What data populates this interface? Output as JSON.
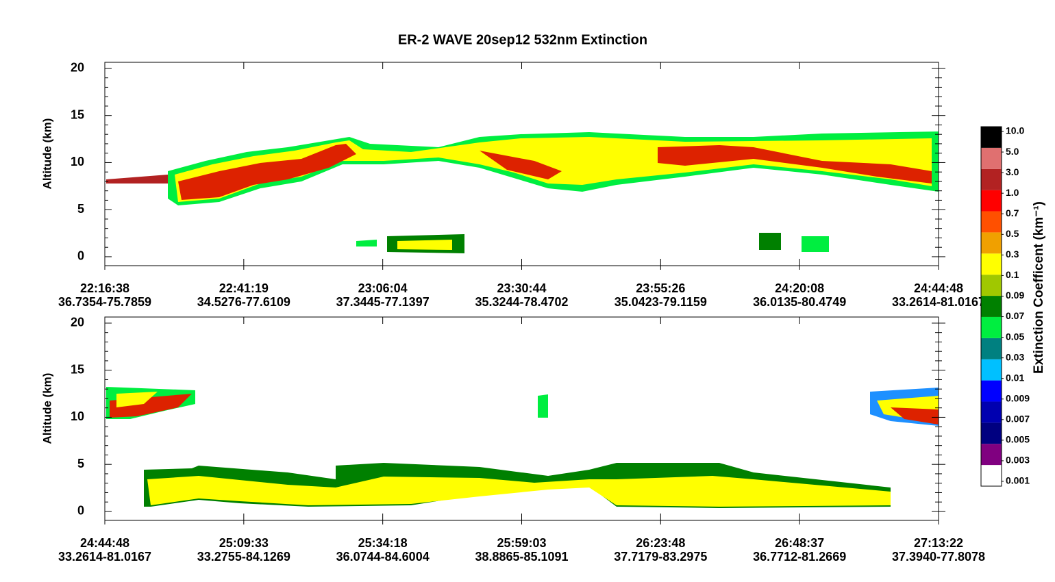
{
  "chart_data": [
    {
      "type": "curtain",
      "title": "ER-2  WAVE  20sep12  532nm Extinction",
      "ylabel": "Altitude (km)",
      "categories": [
        "22:16:38",
        "22:41:19",
        "23:06:04",
        "23:30:44",
        "23:55:26",
        "24:20:08",
        "24:44:48"
      ],
      "locations": [
        "36.7354-75.7859",
        "34.5276-77.6109",
        "37.3445-77.1397",
        "35.3244-78.4702",
        "35.0423-79.1159",
        "36.0135-80.4749",
        "33.2614-81.0167"
      ],
      "ylim": [
        -0.95,
        20.65
      ],
      "yticks": [
        0,
        5,
        10,
        15,
        20
      ]
    },
    {
      "type": "curtain",
      "ylabel": "Altitude (km)",
      "categories": [
        "24:44:48",
        "25:09:33",
        "25:34:18",
        "25:59:03",
        "26:23:48",
        "26:48:37",
        "27:13:22"
      ],
      "locations": [
        "33.2614-81.0167",
        "33.2755-84.1269",
        "36.0744-84.6004",
        "38.8865-85.1091",
        "37.7179-83.2975",
        "36.7712-81.2669",
        "37.3940-77.8078"
      ],
      "ylim": [
        -0.95,
        20.65
      ],
      "yticks": [
        0,
        5,
        10,
        15,
        20
      ]
    }
  ],
  "colorbar": {
    "label": "Extinction Coefficent (km⁻¹)",
    "ticks": [
      0.001,
      0.003,
      0.005,
      0.007,
      0.009,
      0.01,
      0.03,
      0.05,
      0.07,
      0.09,
      0.1,
      {
        "value": 0.3,
        "label": "0.3"
      },
      0.5,
      0.7,
      {
        "value": 1,
        "label": "1.0"
      },
      {
        "value": 3,
        "label": "3.0"
      },
      {
        "value": 5,
        "label": "5.0"
      },
      {
        "value": 10,
        "label": "10.0"
      }
    ],
    "colors": [
      "#ffffff",
      "#800080",
      "#000080",
      "#0000b0",
      "#0000ff",
      "#00c0ff",
      "#008080",
      "#00ee40",
      "#008000",
      "#a0c800",
      "#ffff00",
      "#f0a000",
      "#ff5000",
      "#ff0000",
      "#b22222",
      "#e07070",
      "#000000"
    ]
  }
}
